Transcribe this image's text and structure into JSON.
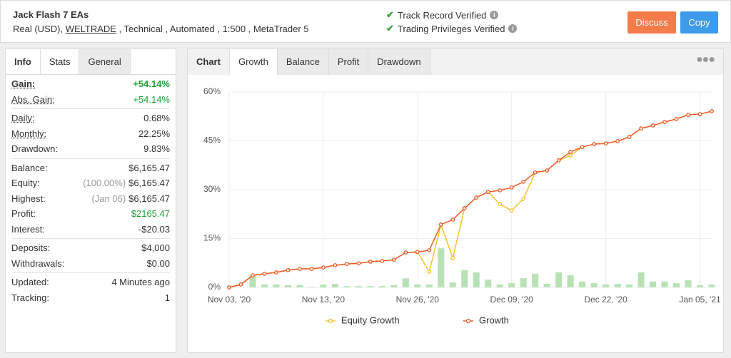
{
  "header": {
    "title": "Jack Flash 7 EAs",
    "subtitle": [
      "Real (USD), ",
      "WELTRADE",
      " , Technical , Automated , 1:500 , MetaTrader 5"
    ],
    "verified": [
      "Track Record Verified",
      "Trading Privileges Verified"
    ],
    "buttons": [
      "Discuss",
      "Copy"
    ]
  },
  "stats": {
    "tabs": [
      "Info",
      "Stats",
      "General"
    ],
    "groups": [
      [
        {
          "label": "Gain:",
          "value": "+54.14%",
          "color": "#1f9d2f",
          "underline": true,
          "bold": true
        },
        {
          "label": "Abs. Gain:",
          "value": "+54.14%",
          "color": "#1f9d2f",
          "underline": true
        }
      ],
      [
        {
          "label": "Daily:",
          "value": "0.68%",
          "underline": true
        },
        {
          "label": "Monthly:",
          "value": "22.25%",
          "underline": true
        },
        {
          "label": "Drawdown:",
          "value": "9.83%"
        }
      ],
      [
        {
          "label": "Balance:",
          "value": "$6,165.47"
        },
        {
          "label": "Equity:",
          "value": "$6,165.47",
          "note": "(100.00%)"
        },
        {
          "label": "Highest:",
          "value": "$6,165.47",
          "note": "(Jan 06)"
        },
        {
          "label": "Profit:",
          "value": "$2165.47",
          "color": "#1f9d2f"
        },
        {
          "label": "Interest:",
          "value": "-$20.03"
        }
      ],
      [
        {
          "label": "Deposits:",
          "value": "$4,000"
        },
        {
          "label": "Withdrawals:",
          "value": "$0.00"
        }
      ],
      [
        {
          "label": "Updated:",
          "value": "4 Minutes ago"
        },
        {
          "label": "Tracking:",
          "value": "1"
        }
      ]
    ]
  },
  "chart_panel": {
    "tabs": [
      "Chart",
      "Growth",
      "Balance",
      "Profit",
      "Drawdown"
    ]
  },
  "chart_data": {
    "type": "line",
    "categories": [
      "Nov 03, '20",
      null,
      null,
      null,
      null,
      null,
      null,
      null,
      "Nov 13, '20",
      null,
      null,
      null,
      null,
      null,
      null,
      null,
      "Nov 26, '20",
      null,
      null,
      null,
      null,
      null,
      null,
      null,
      "Dec 09, '20",
      null,
      null,
      null,
      null,
      null,
      null,
      null,
      "Dec 22, '20",
      null,
      null,
      null,
      null,
      null,
      null,
      null,
      "Jan 05, '21",
      null
    ],
    "series": [
      {
        "name": "Equity Growth",
        "color": "#f5c12e",
        "values": [
          0,
          0.9,
          3.7,
          4.2,
          4.6,
          5.3,
          5.7,
          5.7,
          6.1,
          6.8,
          7.2,
          7.4,
          7.9,
          8.1,
          8.5,
          10.7,
          10.9,
          4.8,
          19.3,
          9.0,
          24.3,
          27.6,
          29.3,
          25.6,
          23.6,
          27.2,
          35.3,
          35.9,
          39.0,
          40.5,
          43.1,
          44.0,
          44.2,
          44.9,
          46.2,
          48.8,
          49.7,
          50.8,
          51.7,
          53.0,
          53.2,
          54.1
        ]
      },
      {
        "name": "Growth",
        "color": "#ee5a2c",
        "values": [
          0,
          0.9,
          3.7,
          4.2,
          4.6,
          5.3,
          5.7,
          5.7,
          6.1,
          6.8,
          7.2,
          7.4,
          7.9,
          8.1,
          8.5,
          10.7,
          10.9,
          11.4,
          19.3,
          20.8,
          24.3,
          27.6,
          29.3,
          29.8,
          30.7,
          32.4,
          35.3,
          35.9,
          39.0,
          41.6,
          43.1,
          44.0,
          44.2,
          44.9,
          46.2,
          48.8,
          49.7,
          50.8,
          51.7,
          53.0,
          53.2,
          54.1
        ]
      }
    ],
    "bars": {
      "color": "#b8e2b6",
      "values": [
        0,
        0,
        3.7,
        0.9,
        0.9,
        0.7,
        0.7,
        0.2,
        0.9,
        1.1,
        0.4,
        0.4,
        0.4,
        0.4,
        0.7,
        2.8,
        0.9,
        0.9,
        12.0,
        1.5,
        5.3,
        4.6,
        2.4,
        0.9,
        1.3,
        2.8,
        4.2,
        1.1,
        4.6,
        3.7,
        1.8,
        1.3,
        0.9,
        1.1,
        0.9,
        4.6,
        1.8,
        1.8,
        1.3,
        2.2,
        0.7,
        0.9
      ]
    },
    "ylim": [
      0,
      60
    ],
    "yticks": [
      {
        "value": 0,
        "label": "0%"
      },
      {
        "value": 15,
        "label": "15%"
      },
      {
        "value": 30,
        "label": "30%"
      },
      {
        "value": 45,
        "label": "45%"
      },
      {
        "value": 60,
        "label": "60%"
      }
    ],
    "grid": true,
    "legend": "bottom"
  }
}
